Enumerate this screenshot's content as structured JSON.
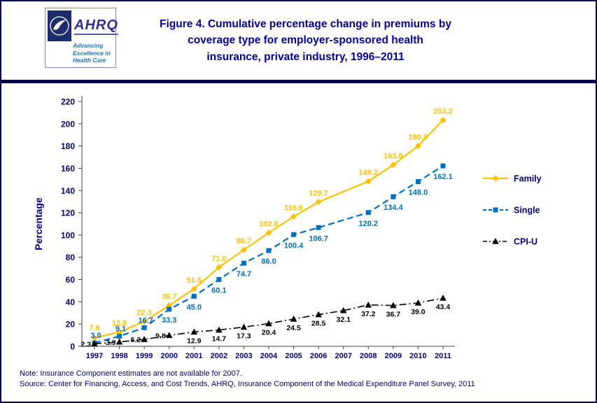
{
  "header": {
    "logo": {
      "org_abbr": "AHRQ",
      "tagline_lines": [
        "Advancing",
        "Excellence in",
        "Health Care"
      ]
    },
    "title_lines": [
      "Figure 4. Cumulative percentage change in premiums by",
      "coverage type for employer-sponsored health",
      "insurance, private industry, 1996–2011"
    ]
  },
  "chart_data": {
    "type": "line",
    "title": "Figure 4. Cumulative percentage change in premiums by coverage type for employer-sponsored health insurance, private industry, 1996–2011",
    "xlabel": "",
    "ylabel": "Percentage",
    "ylim": [
      0,
      220
    ],
    "ytick_step": 20,
    "grid": false,
    "legend_position": "right",
    "annotation": "No Family or Single data points are plotted for 2007; lines connect 2006 to 2008.",
    "categories": [
      "1997",
      "1998",
      "1999",
      "2000",
      "2001",
      "2002",
      "2003",
      "2004",
      "2005",
      "2006",
      "2007",
      "2008",
      "2009",
      "2010",
      "2011"
    ],
    "series": [
      {
        "name": "Family",
        "color": "#FFC000",
        "marker": "diamond",
        "line_style": "solid",
        "values": [
          7.6,
          12.8,
          22.3,
          36.7,
          51.6,
          71.0,
          86.7,
          102.0,
          116.6,
          129.7,
          null,
          148.2,
          163.0,
          180.0,
          203.2
        ]
      },
      {
        "name": "Single",
        "color": "#0070C0",
        "marker": "square",
        "line_style": "dashed",
        "values": [
          3.0,
          9.1,
          16.7,
          33.3,
          45.0,
          60.1,
          74.7,
          86.0,
          100.4,
          106.7,
          null,
          120.2,
          134.4,
          148.0,
          162.1
        ]
      },
      {
        "name": "CPI-U",
        "color": "#000000",
        "marker": "triangle",
        "line_style": "dashdot",
        "values": [
          2.3,
          3.9,
          6.2,
          9.8,
          12.9,
          14.7,
          17.3,
          20.4,
          24.5,
          28.5,
          32.1,
          37.2,
          36.7,
          39.0,
          43.4
        ]
      }
    ]
  },
  "footer": {
    "note": "Note: Insurance Component estimates are not available for 2007.",
    "source": "Source: Center for Financing, Access, and Cost Trends, AHRQ, Insurance Component of the Medical Expenditure Panel Survey, 2011"
  },
  "colors": {
    "title_navy": "#000099",
    "axis_navy": "#000080",
    "rule_navy": "#00004F",
    "family_gold": "#FFC000",
    "single_blue": "#0070C0",
    "cpi_black": "#000000"
  }
}
